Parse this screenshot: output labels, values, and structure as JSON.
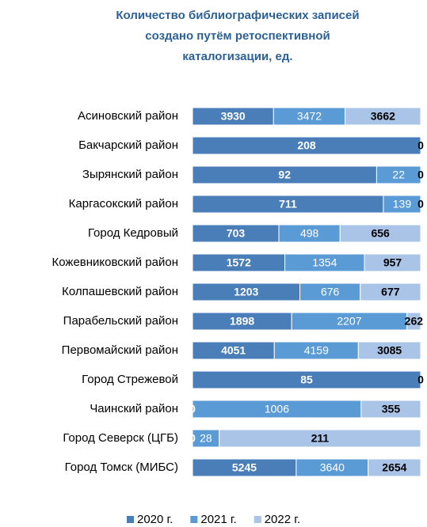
{
  "chart_data": {
    "type": "stacked_bar_100",
    "title": [
      "Количество библиографических записей",
      "создано путём  ретоспективной",
      "каталогизации, ед."
    ],
    "categories": [
      "Асиновский район",
      "Бакчарский район",
      "Зырянский район",
      "Каргасокский район",
      "Город Кедровый",
      "Кожевниковский район",
      "Колпашевский район",
      "Парабельский район",
      "Первомайский район",
      "Город Стрежевой",
      "Чаинский район",
      "Город Северск (ЦГБ)",
      "Город Томск (МИБС)"
    ],
    "series": [
      {
        "name": "2020 г.",
        "color": "#4a7eb9",
        "label_color": "#ffffff",
        "label_bold": true,
        "values": [
          3930,
          208,
          92,
          711,
          703,
          1572,
          1203,
          1898,
          4051,
          85,
          0,
          0,
          5245
        ]
      },
      {
        "name": "2021 г.",
        "color": "#5b9bd5",
        "label_color": "#ffffff",
        "label_bold": false,
        "values": [
          3472,
          0,
          22,
          139,
          498,
          1354,
          676,
          2207,
          4159,
          0,
          1006,
          28,
          3640
        ]
      },
      {
        "name": "2022 г.",
        "color": "#a9c4e6",
        "label_color": "#000000",
        "label_bold": true,
        "values": [
          3662,
          0,
          0,
          0,
          656,
          957,
          677,
          262,
          3085,
          0,
          355,
          211,
          2654
        ]
      }
    ]
  }
}
